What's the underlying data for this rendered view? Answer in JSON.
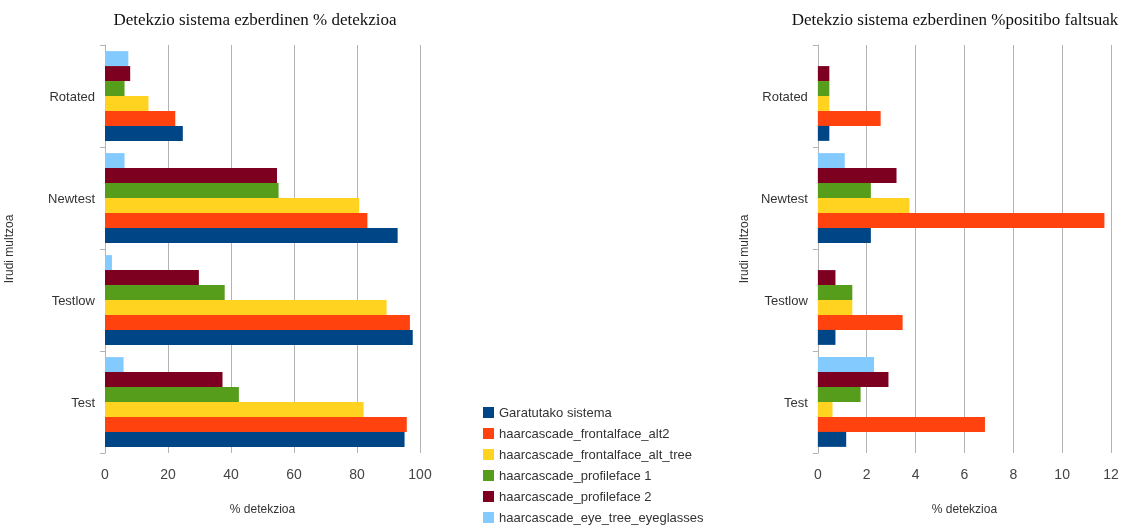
{
  "chart_data": [
    {
      "type": "bar",
      "orientation": "horizontal",
      "title": "Detekzio sistema ezberdinen % detekzioa",
      "xlabel": "% detekzioa",
      "ylabel": "Irudi multzoa",
      "categories": [
        "Rotated",
        "Newtest",
        "Testlow",
        "Test"
      ],
      "series": [
        {
          "name": "Garatutako sistema",
          "color": "#004586",
          "values": [
            24.7,
            92.9,
            97.7,
            95.1
          ]
        },
        {
          "name": "haarcascade_frontalface_alt2",
          "color": "#ff420e",
          "values": [
            22.3,
            83.3,
            96.8,
            95.8
          ]
        },
        {
          "name": "haarcascade_frontalface_alt_tree",
          "color": "#ffd320",
          "values": [
            13.8,
            80.7,
            89.4,
            82.1
          ]
        },
        {
          "name": "haarcascade_profileface 1",
          "color": "#579d1c",
          "values": [
            6.2,
            55.1,
            38.0,
            42.5
          ]
        },
        {
          "name": "haarcascade_profileface 2",
          "color": "#7e0021",
          "values": [
            8.0,
            54.6,
            29.8,
            37.3
          ]
        },
        {
          "name": "haarcascade_eye_tree_eyeglasses",
          "color": "#83caff",
          "values": [
            7.4,
            6.2,
            2.2,
            5.9
          ]
        }
      ],
      "xlim": [
        0,
        100
      ],
      "xticks": [
        0,
        20,
        40,
        60,
        80,
        100
      ],
      "grid": "x",
      "legend": "bottom right"
    },
    {
      "type": "bar",
      "orientation": "horizontal",
      "title": "Detekzio sistema ezberdinen %positibo faltsuak",
      "xlabel": "% detekzioa",
      "ylabel": "Irudi multzoa",
      "categories": [
        "Rotated",
        "Newtest",
        "Testlow",
        "Test"
      ],
      "series": [
        {
          "color": "#004586",
          "values": [
            0.47,
            2.17,
            0.72,
            1.16
          ]
        },
        {
          "color": "#ff420e",
          "values": [
            2.57,
            11.73,
            3.47,
            6.84
          ]
        },
        {
          "color": "#ffd320",
          "values": [
            0.47,
            3.75,
            1.41,
            0.6
          ]
        },
        {
          "color": "#579d1c",
          "values": [
            0.47,
            2.17,
            1.41,
            1.75
          ]
        },
        {
          "color": "#7e0021",
          "values": [
            0.47,
            3.22,
            0.72,
            2.89
          ]
        },
        {
          "color": "#83caff",
          "values": [
            0,
            1.1,
            0,
            2.3
          ]
        }
      ],
      "xlim": [
        0,
        12
      ],
      "xticks": [
        0,
        2,
        4,
        6,
        8,
        10,
        12
      ],
      "grid": "x",
      "legend": false
    }
  ]
}
